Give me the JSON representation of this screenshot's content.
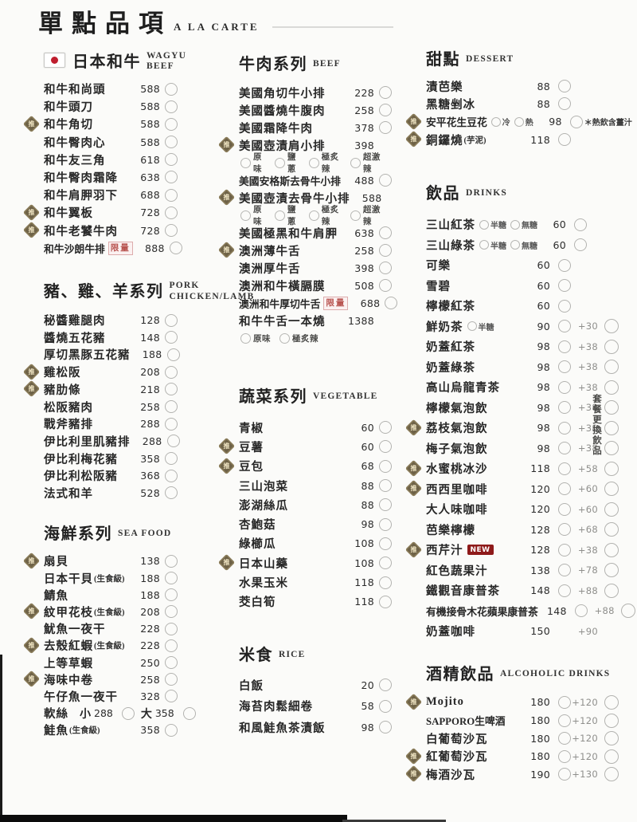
{
  "menu": {
    "title": "單點品項",
    "subtitle": "A LA CARTE",
    "badges": {
      "recommend": "推",
      "limited": "限量",
      "new": "NEW"
    },
    "set_drink_note": "套餐更換飲品",
    "columns": [
      {
        "sections": [
          {
            "id": "wagyu",
            "flag": true,
            "title": "日本和牛",
            "title_en": "WAGYU BEEF",
            "items": [
              {
                "name": "和牛和尚頭",
                "price": "588",
                "circle": true
              },
              {
                "name": "和牛頭刀",
                "price": "588",
                "circle": true
              },
              {
                "name": "和牛角切",
                "price": "588",
                "circle": true,
                "badge": true
              },
              {
                "name": "和牛臀肉心",
                "price": "588",
                "circle": true
              },
              {
                "name": "和牛友三角",
                "price": "618",
                "circle": true
              },
              {
                "name": "和牛臀肉霜降",
                "price": "638",
                "circle": true
              },
              {
                "name": "和牛肩胛羽下",
                "price": "688",
                "circle": true
              },
              {
                "name": "和牛翼板",
                "price": "728",
                "circle": true,
                "badge": true
              },
              {
                "name": "和牛老饕牛肉",
                "price": "728",
                "circle": true,
                "badge": true
              },
              {
                "name": "和牛沙朗牛排",
                "price": "888",
                "circle": true,
                "limited": true
              }
            ]
          },
          {
            "id": "pork-chicken-lamb",
            "title": "豬、雞、羊系列",
            "title_en": "PORK CHICKEN/LAMB",
            "title_en_twoline": true,
            "items": [
              {
                "name": "秘醬雞腿肉",
                "price": "128",
                "circle": true
              },
              {
                "name": "醬燒五花豬",
                "price": "148",
                "circle": true
              },
              {
                "name": "厚切黑豚五花豬",
                "price": "188",
                "circle": true
              },
              {
                "name": "雞松阪",
                "price": "208",
                "circle": true,
                "badge": true
              },
              {
                "name": "豬肋條",
                "price": "218",
                "circle": true,
                "badge": true
              },
              {
                "name": "松阪豬肉",
                "price": "258",
                "circle": true
              },
              {
                "name": "戰斧豬排",
                "price": "288",
                "circle": true
              },
              {
                "name": "伊比利里肌豬排",
                "price": "288",
                "circle": true
              },
              {
                "name": "伊比利梅花豬",
                "price": "358",
                "circle": true
              },
              {
                "name": "伊比利松阪豬",
                "price": "368",
                "circle": true
              },
              {
                "name": "法式和羊",
                "price": "528",
                "circle": true
              }
            ]
          },
          {
            "id": "seafood",
            "title": "海鮮系列",
            "title_en": "SEA FOOD",
            "items": [
              {
                "name": "扇貝",
                "price": "138",
                "circle": true,
                "badge": true
              },
              {
                "name": "日本干貝",
                "note": "(生食級)",
                "price": "188",
                "circle": true
              },
              {
                "name": "鯖魚",
                "price": "188",
                "circle": true
              },
              {
                "name": "紋甲花枝",
                "note": "(生食級)",
                "price": "208",
                "circle": true,
                "badge": true
              },
              {
                "name": "魷魚一夜干",
                "price": "228",
                "circle": true
              },
              {
                "name": "去殼紅蝦",
                "note": "(生食級)",
                "price": "228",
                "circle": true,
                "badge": true
              },
              {
                "name": "上等草蝦",
                "price": "250",
                "circle": true
              },
              {
                "name": "海味中卷",
                "price": "258",
                "circle": true,
                "badge": true
              },
              {
                "name": "午仔魚一夜干",
                "price": "328",
                "circle": true
              },
              {
                "name": "軟絲",
                "sizes": [
                  {
                    "label": "小",
                    "price": "288"
                  },
                  {
                    "label": "大",
                    "price": "358"
                  }
                ]
              },
              {
                "name": "鮭魚",
                "note": "(生食級)",
                "price": "358",
                "circle": true
              }
            ]
          }
        ]
      },
      {
        "sections": [
          {
            "id": "beef",
            "title": "牛肉系列",
            "title_en": "BEEF",
            "items": [
              {
                "name": "美國角切牛小排",
                "price": "228",
                "circle": true
              },
              {
                "name": "美國醬燒牛腹肉",
                "price": "258",
                "circle": true
              },
              {
                "name": "美國霜降牛肉",
                "price": "378",
                "circle": true
              },
              {
                "name": "美國壺漬肩小排",
                "price": "398",
                "badge": true,
                "options": [
                  "原味",
                  "鹽蔥",
                  "極炙辣",
                  "超激辣"
                ]
              },
              {
                "name": "美國安格斯去骨牛小排",
                "price": "488",
                "circle": true
              },
              {
                "name": "美國壺漬去骨牛小排",
                "price": "588",
                "badge": true,
                "options": [
                  "原味",
                  "鹽蔥",
                  "極炙辣",
                  "超激辣"
                ]
              },
              {
                "name": "美國極黑和牛肩胛",
                "price": "638",
                "circle": true
              },
              {
                "name": "澳洲薄牛舌",
                "price": "258",
                "circle": true,
                "badge": true
              },
              {
                "name": "澳洲厚牛舌",
                "price": "398",
                "circle": true
              },
              {
                "name": "澳洲和牛橫膈膜",
                "price": "508",
                "circle": true
              },
              {
                "name": "澳洲和牛厚切牛舌",
                "price": "688",
                "circle": true,
                "limited": true
              },
              {
                "name": "和牛牛舌一本燒",
                "price": "1388",
                "options": [
                  "原味",
                  "極炙辣"
                ]
              }
            ]
          },
          {
            "id": "vegetable",
            "title": "蔬菜系列",
            "title_en": "VEGETABLE",
            "items": [
              {
                "name": "青椒",
                "price": "60",
                "circle": true
              },
              {
                "name": "豆薯",
                "price": "60",
                "circle": true,
                "badge": true
              },
              {
                "name": "豆包",
                "price": "68",
                "circle": true,
                "badge": true
              },
              {
                "name": "三山泡菜",
                "price": "88",
                "circle": true
              },
              {
                "name": "澎湖絲瓜",
                "price": "88",
                "circle": true
              },
              {
                "name": "杏鮑菇",
                "price": "98",
                "circle": true
              },
              {
                "name": "綠櫛瓜",
                "price": "108",
                "circle": true
              },
              {
                "name": "日本山藥",
                "price": "108",
                "circle": true,
                "badge": true
              },
              {
                "name": "水果玉米",
                "price": "118",
                "circle": true
              },
              {
                "name": "茭白筍",
                "price": "118",
                "circle": true
              }
            ]
          },
          {
            "id": "rice",
            "title": "米食",
            "title_en": "RICE",
            "items": [
              {
                "name": "白飯",
                "price": "20",
                "circle": true
              },
              {
                "name": "海苔肉鬆細卷",
                "price": "58",
                "circle": true
              },
              {
                "name": "和風鮭魚茶漬飯",
                "price": "98",
                "circle": true
              }
            ]
          }
        ]
      },
      {
        "sections": [
          {
            "id": "dessert",
            "title": "甜點",
            "title_en": "DESSERT",
            "items": [
              {
                "name": "漬芭樂",
                "price": "88",
                "circle": true
              },
              {
                "name": "黑糖剉冰",
                "price": "88",
                "circle": true
              },
              {
                "name": "安平花生豆花",
                "inline_options": [
                  "冷",
                  "熱"
                ],
                "price": "98",
                "circle": true,
                "badge": true,
                "after_note": "＊熱飲含薑汁"
              },
              {
                "name": "銅鑼燒",
                "note": "(芋泥)",
                "price": "118",
                "circle": true,
                "badge": true
              }
            ]
          },
          {
            "id": "drinks",
            "title": "飲品",
            "title_en": "DRINKS",
            "side_note": "套餐更換飲品",
            "items": [
              {
                "name": "三山紅茶",
                "inline_options": [
                  "半糖",
                  "無糖"
                ],
                "price": "60",
                "circle": true
              },
              {
                "name": "三山綠茶",
                "inline_options": [
                  "半糖",
                  "無糖"
                ],
                "price": "60",
                "circle": true
              },
              {
                "name": "可樂",
                "price": "60",
                "circle": true
              },
              {
                "name": "雪碧",
                "price": "60",
                "circle": true
              },
              {
                "name": "檸檬紅茶",
                "price": "60",
                "circle": true
              },
              {
                "name": "鮮奶茶",
                "inline_options": [
                  "半糖"
                ],
                "price": "90",
                "circle": true,
                "addon": "+30",
                "addon_circle": true
              },
              {
                "name": "奶蓋紅茶",
                "price": "98",
                "circle": true,
                "addon": "+38",
                "addon_circle": true
              },
              {
                "name": "奶蓋綠茶",
                "price": "98",
                "circle": true,
                "addon": "+38",
                "addon_circle": true
              },
              {
                "name": "高山烏龍青茶",
                "price": "98",
                "circle": true,
                "addon": "+38",
                "addon_circle": true
              },
              {
                "name": "檸檬氣泡飲",
                "price": "98",
                "circle": true,
                "addon": "+38",
                "addon_circle": true
              },
              {
                "name": "荔枝氣泡飲",
                "price": "98",
                "circle": true,
                "badge": true,
                "addon": "+38",
                "addon_circle": true
              },
              {
                "name": "梅子氣泡飲",
                "price": "98",
                "circle": true,
                "addon": "+38",
                "addon_circle": true
              },
              {
                "name": "水蜜桃冰沙",
                "price": "118",
                "circle": true,
                "badge": true,
                "addon": "+58",
                "addon_circle": true
              },
              {
                "name": "西西里咖啡",
                "price": "120",
                "circle": true,
                "badge": true,
                "addon": "+60",
                "addon_circle": true
              },
              {
                "name": "大人味咖啡",
                "price": "120",
                "circle": true,
                "addon": "+60",
                "addon_circle": true
              },
              {
                "name": "芭樂檸檬",
                "price": "128",
                "circle": true,
                "addon": "+68",
                "addon_circle": true
              },
              {
                "name": "西芹汁",
                "price": "128",
                "circle": true,
                "badge": true,
                "new": true,
                "addon": "+38",
                "addon_circle": true
              },
              {
                "name": "紅色蔬果汁",
                "price": "138",
                "circle": true,
                "addon": "+78",
                "addon_circle": true
              },
              {
                "name": "鐵觀音康普茶",
                "price": "148",
                "circle": true,
                "addon": "+88",
                "addon_circle": true
              },
              {
                "name": "有機接骨木花蘋果康普茶",
                "price": "148",
                "circle": true,
                "addon": "+88",
                "addon_circle": true
              },
              {
                "name": "奶蓋咖啡",
                "price": "150",
                "addon": "+90"
              }
            ]
          },
          {
            "id": "alcoholic-drinks",
            "title": "酒精飲品",
            "title_en": "ALCOHOLIC DRINKS",
            "items": [
              {
                "name": "Mojito",
                "price": "180",
                "circle": true,
                "badge": true,
                "addon": "+120",
                "addon_circle": true
              },
              {
                "name": "SAPPORO生啤酒",
                "price": "180",
                "circle": true,
                "addon": "+120",
                "addon_circle": true
              },
              {
                "name": "白葡萄沙瓦",
                "price": "180",
                "circle": true,
                "addon": "+120",
                "addon_circle": true
              },
              {
                "name": "紅葡萄沙瓦",
                "price": "180",
                "circle": true,
                "badge": true,
                "addon": "+120",
                "addon_circle": true
              },
              {
                "name": "梅酒沙瓦",
                "price": "190",
                "circle": true,
                "badge": true,
                "addon": "+130",
                "addon_circle": true
              }
            ]
          }
        ]
      }
    ]
  }
}
